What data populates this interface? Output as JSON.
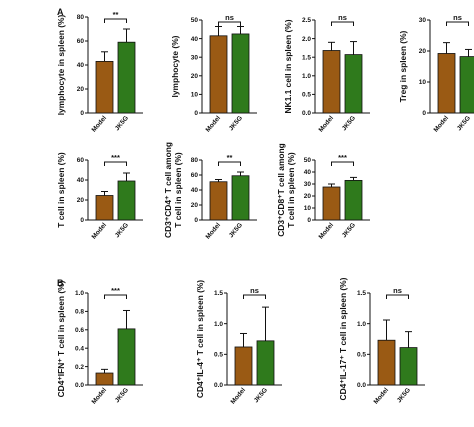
{
  "panel_labels": [
    "A",
    "B"
  ],
  "colors": {
    "Model": "#9a5a14",
    "JK5G": "#2f7a1c",
    "axis": "#111111"
  },
  "chart_data": [
    {
      "type": "bar",
      "ylabel": "lymphocyte  in spleen (%)",
      "ylim": [
        0,
        80
      ],
      "yticks": [
        0,
        20,
        40,
        60,
        80
      ],
      "categories": [
        "Model",
        "JK5G"
      ],
      "values": [
        43,
        59
      ],
      "errors": [
        8,
        11
      ],
      "significance": "**"
    },
    {
      "type": "bar",
      "ylabel": "lymphocyte (%)",
      "ylim": [
        0,
        50
      ],
      "yticks": [
        0,
        10,
        20,
        30,
        40,
        50
      ],
      "categories": [
        "Model",
        "JK5G"
      ],
      "values": [
        41.5,
        42.5
      ],
      "errors": [
        5,
        4
      ],
      "significance": "ns"
    },
    {
      "type": "bar",
      "ylabel": "NK1.1 cell in spleen (%)",
      "ylim": [
        0,
        2.5
      ],
      "yticks": [
        0.0,
        0.5,
        1.0,
        1.5,
        2.0,
        2.5
      ],
      "tick_decimals": 1,
      "categories": [
        "Model",
        "JK5G"
      ],
      "values": [
        1.68,
        1.57
      ],
      "errors": [
        0.22,
        0.35
      ],
      "significance": "ns"
    },
    {
      "type": "bar",
      "ylabel": "Treg in spleen (%)",
      "ylim": [
        0,
        30
      ],
      "yticks": [
        0,
        10,
        20,
        30
      ],
      "categories": [
        "Model",
        "JK5G"
      ],
      "values": [
        19.2,
        18.2
      ],
      "errors": [
        3.5,
        2.3
      ],
      "significance": "ns"
    },
    {
      "type": "bar",
      "ylabel": "T cell in spleen (%)",
      "ylim": [
        0,
        60
      ],
      "yticks": [
        0,
        20,
        40,
        60
      ],
      "categories": [
        "Model",
        "JK5G"
      ],
      "values": [
        24.5,
        39
      ],
      "errors": [
        4,
        8
      ],
      "significance": "***"
    },
    {
      "type": "bar",
      "ylabel_lines": [
        "CD3⁺CD4⁺ T cell among",
        "T cell in spleen (%)"
      ],
      "ylim": [
        0,
        80
      ],
      "yticks": [
        0,
        20,
        40,
        60,
        80
      ],
      "categories": [
        "Model",
        "JK5G"
      ],
      "values": [
        51,
        59
      ],
      "errors": [
        3,
        5
      ],
      "significance": "**"
    },
    {
      "type": "bar",
      "ylabel_lines": [
        "CD3⁺CD8⁺T cell among",
        "T cell in spleen (%)"
      ],
      "ylim": [
        0,
        50
      ],
      "yticks": [
        0,
        10,
        20,
        30,
        40,
        50
      ],
      "categories": [
        "Model",
        "JK5G"
      ],
      "values": [
        27.5,
        33
      ],
      "errors": [
        2.5,
        2.5
      ],
      "significance": "***"
    },
    {
      "type": "bar",
      "ylabel": "CD4⁺IFN⁺ T cell in spleen (%)",
      "ylim": [
        0,
        1.0
      ],
      "yticks": [
        0.0,
        0.2,
        0.4,
        0.6,
        0.8,
        1.0
      ],
      "tick_decimals": 1,
      "categories": [
        "Model",
        "JK5G"
      ],
      "values": [
        0.13,
        0.61
      ],
      "errors": [
        0.04,
        0.2
      ],
      "significance": "***"
    },
    {
      "type": "bar",
      "ylabel": "CD4⁺IL-4⁺ T cell in spleen (%)",
      "ylim": [
        0,
        1.5
      ],
      "yticks": [
        0.0,
        0.5,
        1.0,
        1.5
      ],
      "tick_decimals": 1,
      "categories": [
        "Model",
        "JK5G"
      ],
      "values": [
        0.62,
        0.72
      ],
      "errors": [
        0.22,
        0.55
      ],
      "significance": "ns"
    },
    {
      "type": "bar",
      "ylabel": "CD4⁺IL-17⁺ T cell in spleen (%)",
      "ylim": [
        0,
        1.5
      ],
      "yticks": [
        0.0,
        0.5,
        1.0,
        1.5
      ],
      "tick_decimals": 1,
      "categories": [
        "Model",
        "JK5G"
      ],
      "values": [
        0.73,
        0.61
      ],
      "errors": [
        0.33,
        0.26
      ],
      "significance": "ns"
    }
  ]
}
